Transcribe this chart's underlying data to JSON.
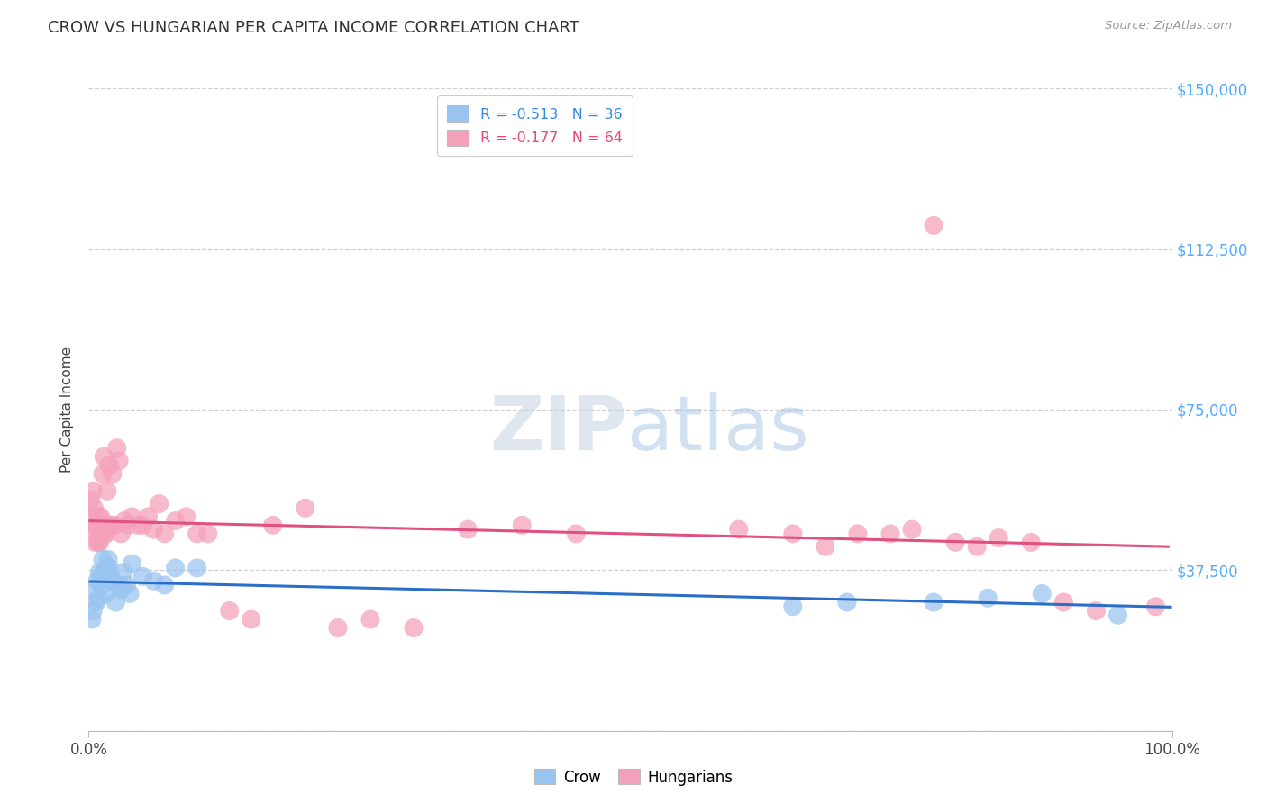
{
  "title": "CROW VS HUNGARIAN PER CAPITA INCOME CORRELATION CHART",
  "source": "Source: ZipAtlas.com",
  "ylabel": "Per Capita Income",
  "xlim": [
    0.0,
    1.0
  ],
  "ylim": [
    0,
    150000
  ],
  "yticks": [
    0,
    37500,
    75000,
    112500,
    150000
  ],
  "ytick_labels": [
    "",
    "$37,500",
    "$75,000",
    "$112,500",
    "$150,000"
  ],
  "xtick_positions": [
    0.0,
    1.0
  ],
  "xtick_labels": [
    "0.0%",
    "100.0%"
  ],
  "bg_color": "#ffffff",
  "crow_color": "#99c4f0",
  "hungarian_color": "#f4a0b8",
  "crow_line_color": "#2a6ec8",
  "hungarian_line_color": "#e05080",
  "crow_R": -0.513,
  "crow_N": 36,
  "hungarian_R": -0.177,
  "hungarian_N": 64,
  "crow_x": [
    0.003,
    0.004,
    0.005,
    0.007,
    0.008,
    0.009,
    0.01,
    0.011,
    0.012,
    0.013,
    0.014,
    0.015,
    0.016,
    0.017,
    0.018,
    0.019,
    0.02,
    0.022,
    0.025,
    0.027,
    0.03,
    0.032,
    0.035,
    0.038,
    0.04,
    0.05,
    0.06,
    0.07,
    0.08,
    0.1,
    0.65,
    0.7,
    0.78,
    0.83,
    0.88,
    0.95
  ],
  "crow_y": [
    26000,
    28000,
    33000,
    30000,
    35000,
    31000,
    37000,
    36000,
    34000,
    40000,
    37000,
    36000,
    32000,
    38000,
    40000,
    38000,
    36000,
    35000,
    30000,
    34000,
    33000,
    37000,
    34000,
    32000,
    39000,
    36000,
    35000,
    34000,
    38000,
    38000,
    29000,
    30000,
    30000,
    31000,
    32000,
    27000
  ],
  "hungarian_x": [
    0.002,
    0.003,
    0.004,
    0.005,
    0.006,
    0.006,
    0.007,
    0.008,
    0.009,
    0.009,
    0.01,
    0.01,
    0.011,
    0.012,
    0.013,
    0.014,
    0.015,
    0.016,
    0.017,
    0.018,
    0.019,
    0.02,
    0.022,
    0.024,
    0.026,
    0.028,
    0.03,
    0.033,
    0.036,
    0.04,
    0.045,
    0.05,
    0.055,
    0.06,
    0.065,
    0.07,
    0.08,
    0.09,
    0.1,
    0.11,
    0.13,
    0.15,
    0.17,
    0.2,
    0.23,
    0.26,
    0.3,
    0.35,
    0.4,
    0.45,
    0.6,
    0.65,
    0.68,
    0.71,
    0.74,
    0.76,
    0.78,
    0.8,
    0.82,
    0.84,
    0.87,
    0.9,
    0.93,
    0.985
  ],
  "hungarian_y": [
    54000,
    50000,
    56000,
    52000,
    48000,
    44000,
    46000,
    48000,
    50000,
    44000,
    46000,
    44000,
    50000,
    46000,
    60000,
    64000,
    46000,
    46000,
    56000,
    48000,
    62000,
    48000,
    60000,
    48000,
    66000,
    63000,
    46000,
    49000,
    48000,
    50000,
    48000,
    48000,
    50000,
    47000,
    53000,
    46000,
    49000,
    50000,
    46000,
    46000,
    28000,
    26000,
    48000,
    52000,
    24000,
    26000,
    24000,
    47000,
    48000,
    46000,
    47000,
    46000,
    43000,
    46000,
    46000,
    47000,
    118000,
    44000,
    43000,
    45000,
    44000,
    30000,
    28000,
    29000
  ]
}
